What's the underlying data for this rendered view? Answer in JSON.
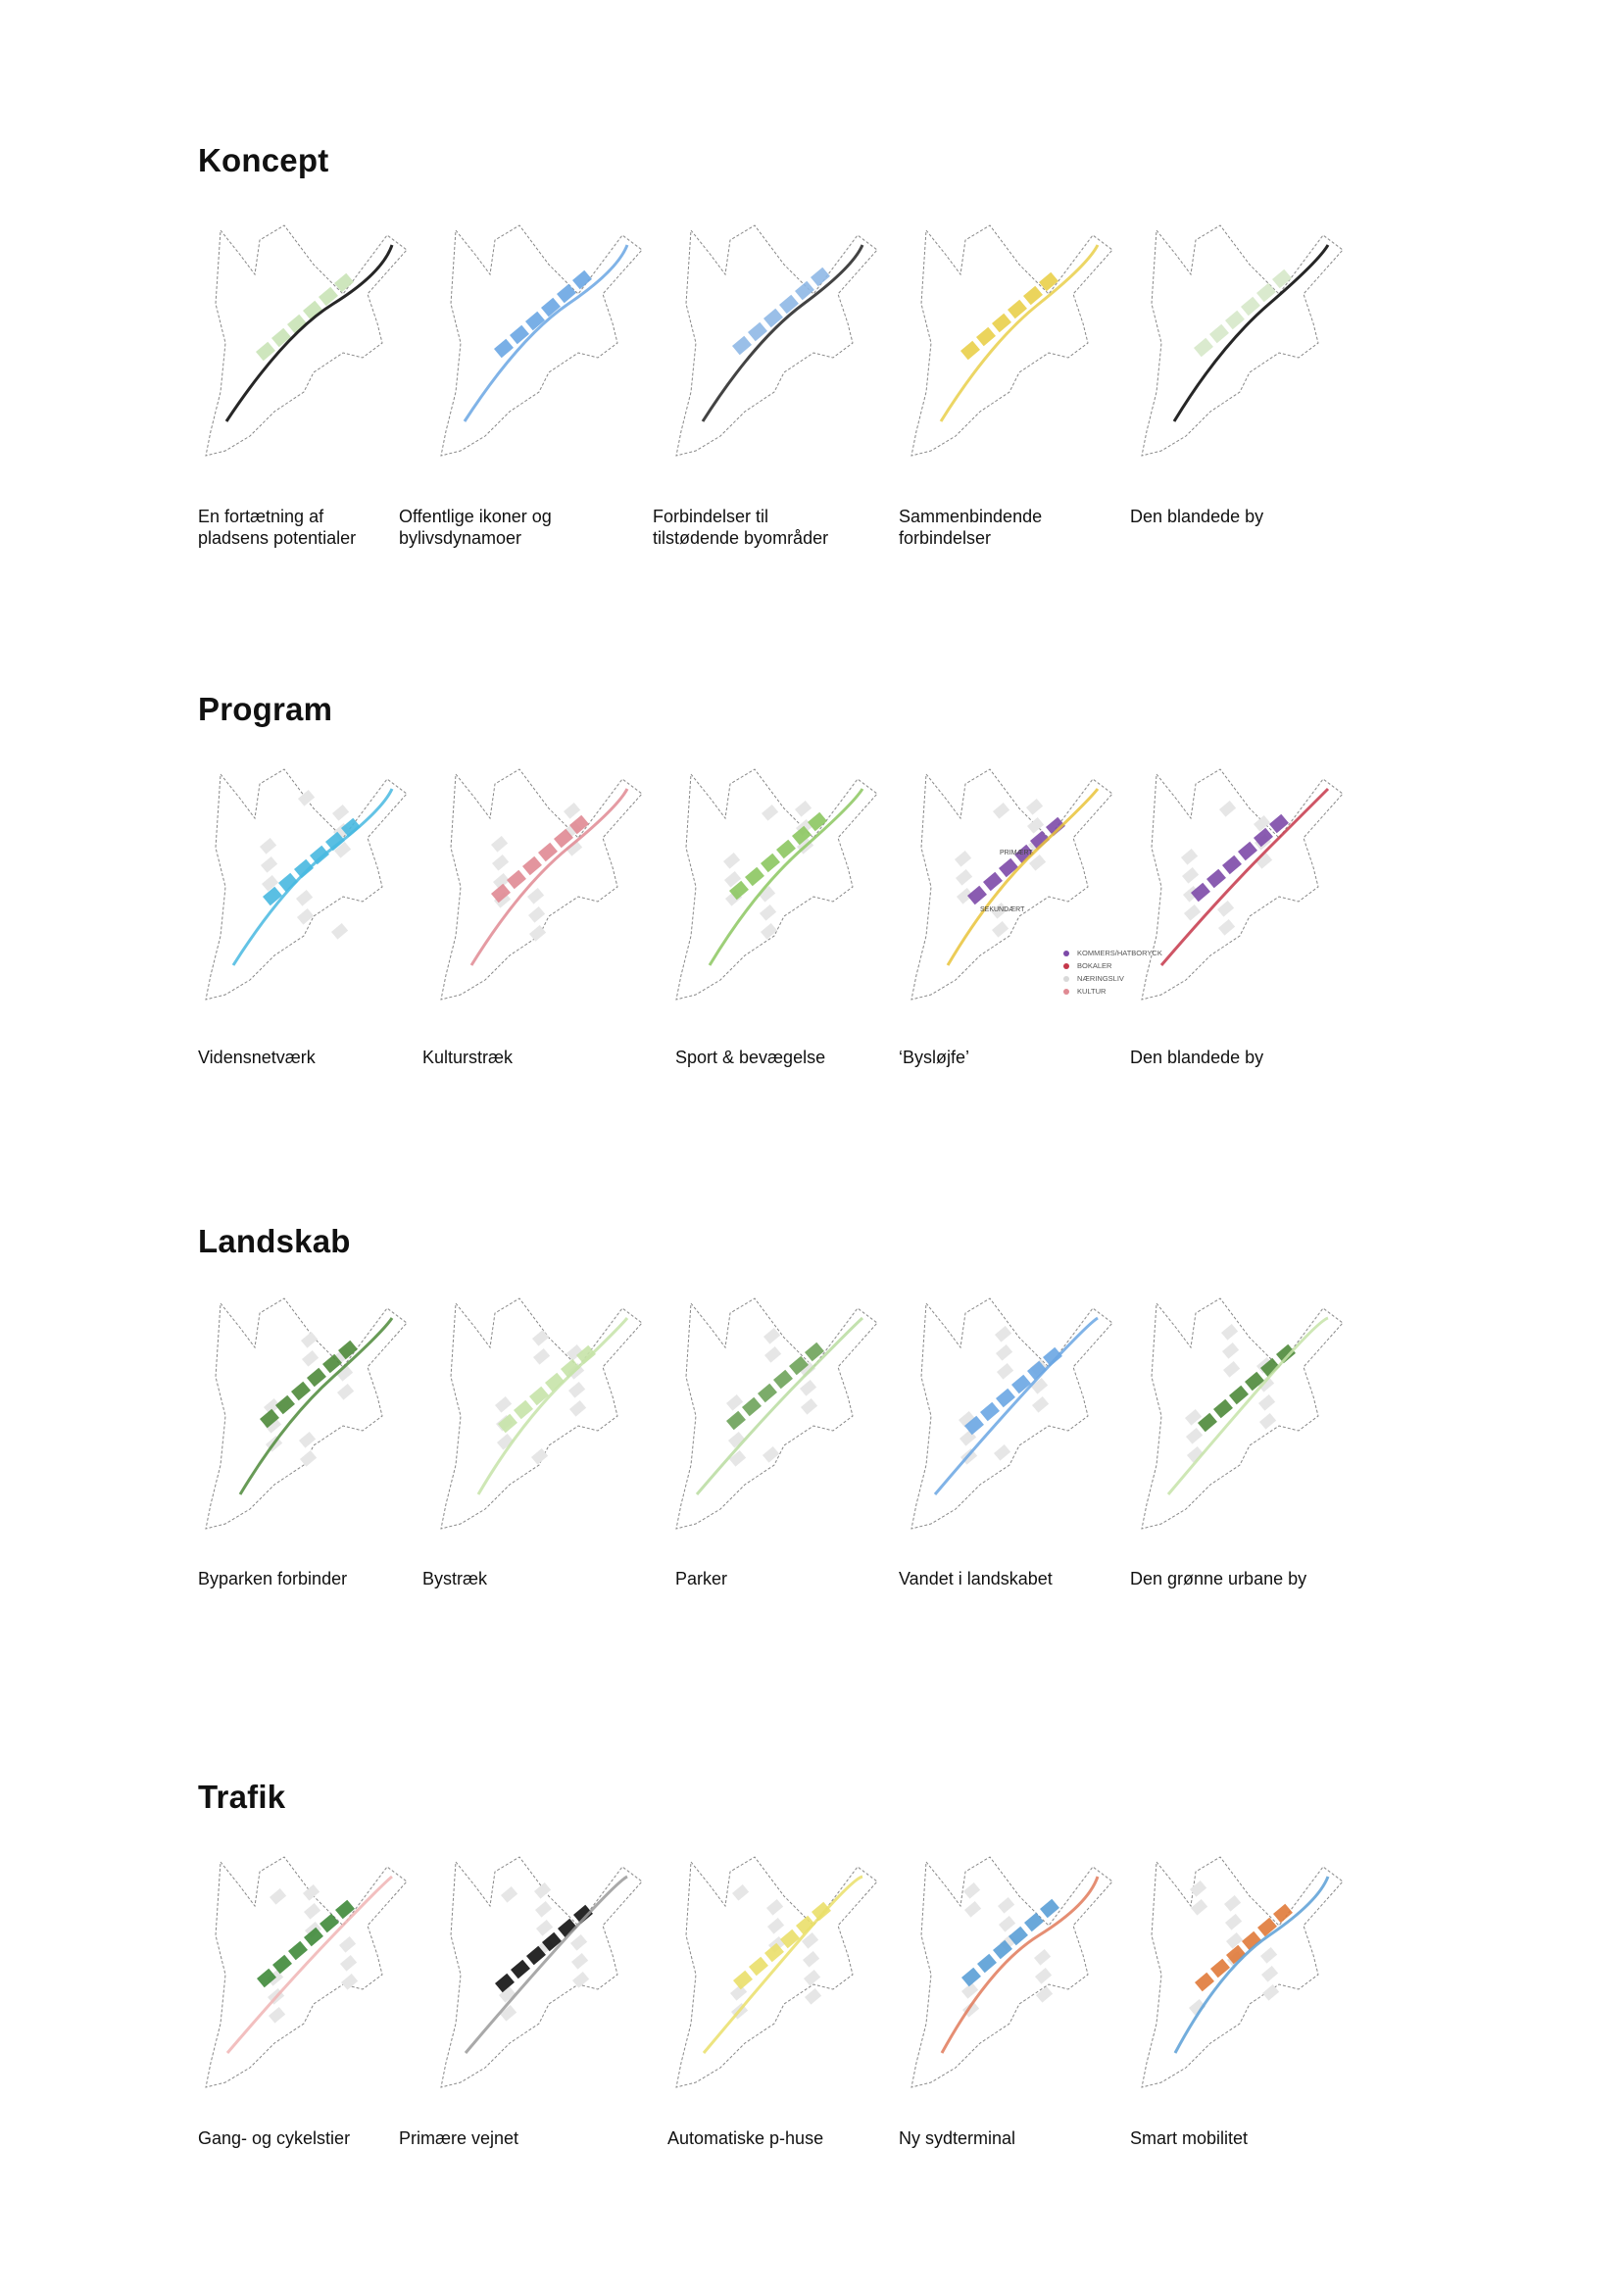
{
  "sections": [
    {
      "title": "Koncept",
      "items": [
        {
          "lines": [
            "En fortætning af",
            "pladsens potentialer"
          ],
          "color": "#c9e3b6",
          "accent": "#000000"
        },
        {
          "lines": [
            "Offentlige ikoner og",
            "bylivsdynamoer"
          ],
          "color": "#6aa6e3",
          "accent": "#6aa6e3"
        },
        {
          "lines": [
            "Forbindelser til",
            "tilstødende byområder"
          ],
          "color": "#8fb8e6",
          "accent": "#222222"
        },
        {
          "lines": [
            "Sammenbindende",
            "forbindelser"
          ],
          "color": "#e9cf4a",
          "accent": "#e9cf4a"
        },
        {
          "lines": [
            "Den blandede by"
          ],
          "color": "#d6e8c9",
          "accent": "#000000"
        }
      ]
    },
    {
      "title": "Program",
      "items": [
        {
          "lines": [
            "Vidensnetværk"
          ],
          "color": "#48b8e0",
          "accent": "#48b8e0"
        },
        {
          "lines": [
            "Kulturstræk"
          ],
          "color": "#e08a93",
          "accent": "#e08a93"
        },
        {
          "lines": [
            "Sport & bevægelse"
          ],
          "color": "#8cc760",
          "accent": "#8cc760"
        },
        {
          "lines": [
            "‘Bysløjfe’"
          ],
          "color": "#7d4aa8",
          "accent": "#e9c33a"
        },
        {
          "lines": [
            "Den blandede by"
          ],
          "color": "#7d4aa8",
          "accent": "#c5374a"
        }
      ],
      "map_labels": {
        "primary": "PRIMÆRT",
        "secondary": "SEKUNDÆRT"
      },
      "legend": [
        {
          "label": "KOMMERS/HATBORYCK",
          "color": "#7d4aa8"
        },
        {
          "label": "BOKALER",
          "color": "#c5374a"
        },
        {
          "label": "NÆRINGSLIV",
          "color": "#d9d9d9"
        },
        {
          "label": "KULTUR",
          "color": "#e08a93"
        }
      ]
    },
    {
      "title": "Landskab",
      "items": [
        {
          "lines": [
            "Byparken forbinder"
          ],
          "color": "#4e8a3a",
          "accent": "#4e8a3a"
        },
        {
          "lines": [
            "Bystræk"
          ],
          "color": "#c6e3a8",
          "accent": "#c6e3a8"
        },
        {
          "lines": [
            "Parker"
          ],
          "color": "#6ea35a",
          "accent": "#b9dca0"
        },
        {
          "lines": [
            "Vandet i landskabet"
          ],
          "color": "#6aa6e3",
          "accent": "#6aa6e3"
        },
        {
          "lines": [
            "Den grønne urbane by"
          ],
          "color": "#4e8a3a",
          "accent": "#c6e3a8"
        }
      ]
    },
    {
      "title": "Trafik",
      "items": [
        {
          "lines": [
            "Gang- og cykelstier"
          ],
          "color": "#3f8a3a",
          "accent": "#f0b4b4"
        },
        {
          "lines": [
            "Primære vejnet"
          ],
          "color": "#111111",
          "accent": "#9a9a9a"
        },
        {
          "lines": [
            "Automatiske p-huse"
          ],
          "color": "#eadf6a",
          "accent": "#eadf6a"
        },
        {
          "lines": [
            "Ny sydterminal"
          ],
          "color": "#5a9fd6",
          "accent": "#e07a5a"
        },
        {
          "lines": [
            "Smart mobilitet"
          ],
          "color": "#e07a3a",
          "accent": "#5a9fd6"
        }
      ]
    }
  ]
}
